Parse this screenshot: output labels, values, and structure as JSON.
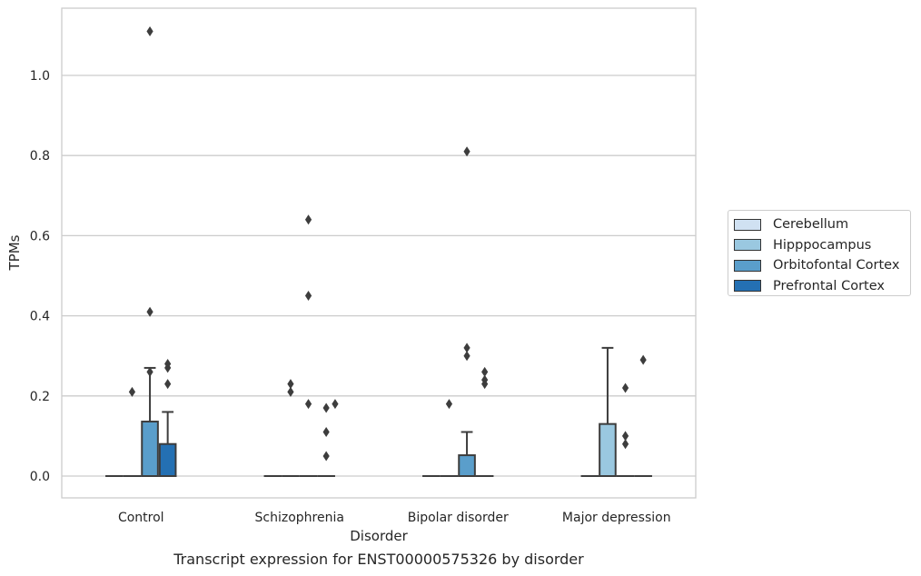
{
  "chart_data": {
    "type": "box",
    "title": "",
    "caption": "Transcript expression for ENST00000575326 by disorder",
    "xlabel": "Disorder",
    "ylabel": "TPMs",
    "ylim": [
      -0.055,
      1.17
    ],
    "yticks": [
      0.0,
      0.2,
      0.4,
      0.6,
      0.8,
      1.0
    ],
    "ytick_labels": [
      "0.0",
      "0.2",
      "0.4",
      "0.6",
      "0.8",
      "1.0"
    ],
    "grid": "horizontal",
    "legend_position": "outside-right",
    "categories": [
      "Control",
      "Schizophrenia",
      "Bipolar disorder",
      "Major depression"
    ],
    "series": [
      {
        "name": "Cerebellum",
        "color": "#d0e1f2",
        "boxes": [
          {
            "q1": 0,
            "median": 0,
            "q3": 0,
            "whisker_low": 0,
            "whisker_high": 0,
            "outliers": []
          },
          {
            "q1": 0,
            "median": 0,
            "q3": 0,
            "whisker_low": 0,
            "whisker_high": 0,
            "outliers": []
          },
          {
            "q1": 0,
            "median": 0,
            "q3": 0,
            "whisker_low": 0,
            "whisker_high": 0,
            "outliers": []
          },
          {
            "q1": 0,
            "median": 0,
            "q3": 0,
            "whisker_low": 0,
            "whisker_high": 0,
            "outliers": []
          }
        ]
      },
      {
        "name": "Hipppocampus",
        "color": "#9ac8e0",
        "boxes": [
          {
            "q1": 0,
            "median": 0,
            "q3": 0,
            "whisker_low": 0,
            "whisker_high": 0,
            "outliers": [
              0.21
            ]
          },
          {
            "q1": 0,
            "median": 0,
            "q3": 0,
            "whisker_low": 0,
            "whisker_high": 0,
            "outliers": [
              0.21,
              0.23
            ]
          },
          {
            "q1": 0,
            "median": 0,
            "q3": 0,
            "whisker_low": 0,
            "whisker_high": 0,
            "outliers": [
              0.18
            ]
          },
          {
            "q1": 0,
            "median": 0,
            "q3": 0.13,
            "whisker_low": 0,
            "whisker_high": 0.32,
            "outliers": []
          }
        ]
      },
      {
        "name": "Orbitofontal Cortex",
        "color": "#5a9ecb",
        "boxes": [
          {
            "q1": 0,
            "median": 0,
            "q3": 0.136,
            "whisker_low": 0,
            "whisker_high": 0.27,
            "outliers": [
              0.26,
              0.41,
              1.11
            ]
          },
          {
            "q1": 0,
            "median": 0,
            "q3": 0,
            "whisker_low": 0,
            "whisker_high": 0,
            "outliers": [
              0.18,
              0.45,
              0.64
            ]
          },
          {
            "q1": 0,
            "median": 0,
            "q3": 0.052,
            "whisker_low": 0,
            "whisker_high": 0.11,
            "outliers": [
              0.3,
              0.32,
              0.81
            ]
          },
          {
            "q1": 0,
            "median": 0,
            "q3": 0,
            "whisker_low": 0,
            "whisker_high": 0,
            "outliers": [
              0.08,
              0.1,
              0.22
            ]
          }
        ]
      },
      {
        "name": "Prefrontal Cortex",
        "color": "#2470b3",
        "boxes": [
          {
            "q1": 0,
            "median": 0,
            "q3": 0.08,
            "whisker_low": 0,
            "whisker_high": 0.16,
            "outliers": [
              0.23,
              0.27,
              0.28
            ]
          },
          {
            "q1": 0,
            "median": 0,
            "q3": 0,
            "whisker_low": 0,
            "whisker_high": 0,
            "outliers": [
              0.05,
              0.11,
              0.17
            ]
          },
          {
            "q1": 0,
            "median": 0,
            "q3": 0,
            "whisker_low": 0,
            "whisker_high": 0,
            "outliers": [
              0.23,
              0.24,
              0.26
            ]
          },
          {
            "q1": 0,
            "median": 0,
            "q3": 0,
            "whisker_low": 0,
            "whisker_high": 0,
            "outliers": [
              0.29
            ]
          }
        ]
      }
    ],
    "extra_outliers": [
      {
        "category": 1,
        "series_offset": 4,
        "values": [
          0.18
        ]
      }
    ]
  }
}
